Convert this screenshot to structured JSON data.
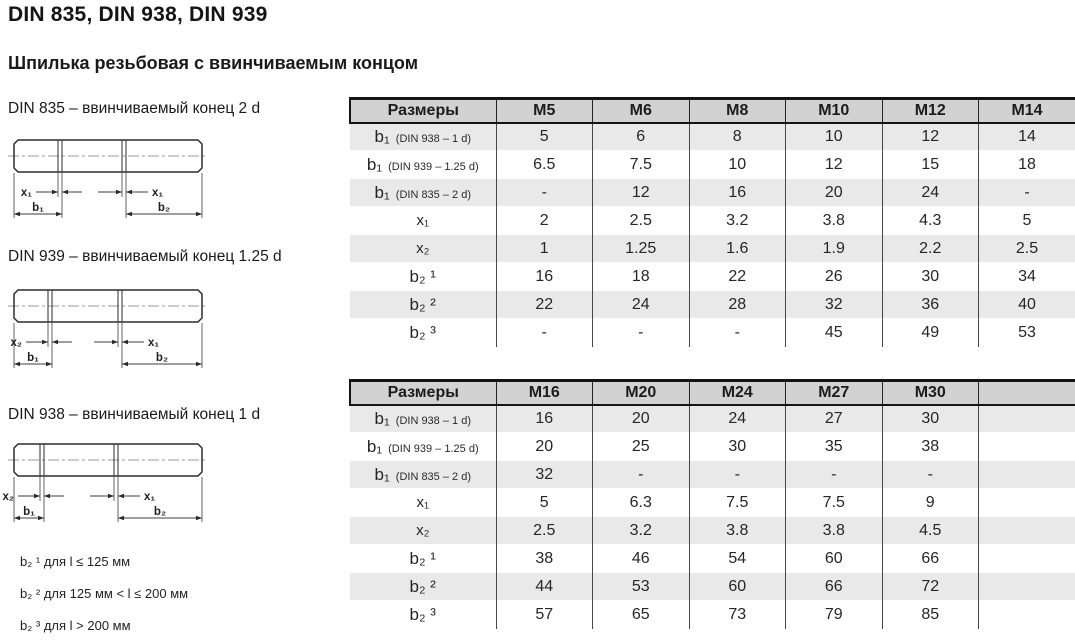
{
  "header": {
    "title": "DIN 835, DIN 938, DIN 939",
    "subtitle": "Шпилька резьбовая с ввинчиваемым концом"
  },
  "drawings": [
    {
      "heading": "DIN 835 – ввинчиваемый конец 2 d",
      "x_left_label": "x₁",
      "x_right_label": "x₁",
      "b_left_label": "b₁",
      "b_right_label": "b₂"
    },
    {
      "heading": "DIN 939 – ввинчиваемый конец 1.25 d",
      "x_left_label": "x₂",
      "x_right_label": "x₁",
      "b_left_label": "b₁",
      "b_right_label": "b₂"
    },
    {
      "heading": "DIN 938 – ввинчиваемый конец 1 d",
      "x_left_label": "x₂",
      "x_right_label": "x₁",
      "b_left_label": "b₁",
      "b_right_label": "b₂"
    }
  ],
  "footnotes": [
    "b₂ ¹ для l ≤ 125 мм",
    "b₂ ² для 125 мм < l ≤ 200 мм",
    "b₂ ³ для l > 200 мм"
  ],
  "tables": [
    {
      "columns": [
        "Размеры",
        "M5",
        "M6",
        "M8",
        "M10",
        "M12",
        "M14"
      ],
      "rows": [
        {
          "label": {
            "base": "b₁",
            "note": "(DIN 938 – 1 d)"
          },
          "values": [
            "5",
            "6",
            "8",
            "10",
            "12",
            "14"
          ]
        },
        {
          "label": {
            "base": "b₁",
            "note": "(DIN 939 – 1.25 d)"
          },
          "values": [
            "6.5",
            "7.5",
            "10",
            "12",
            "15",
            "18"
          ]
        },
        {
          "label": {
            "base": "b₁",
            "note": "(DIN 835 – 2 d)"
          },
          "values": [
            "-",
            "12",
            "16",
            "20",
            "24",
            "-"
          ]
        },
        {
          "label": {
            "base": "x₁"
          },
          "values": [
            "2",
            "2.5",
            "3.2",
            "3.8",
            "4.3",
            "5"
          ]
        },
        {
          "label": {
            "base": "x₂"
          },
          "values": [
            "1",
            "1.25",
            "1.6",
            "1.9",
            "2.2",
            "2.5"
          ]
        },
        {
          "label": {
            "base": "b₂ ¹"
          },
          "values": [
            "16",
            "18",
            "22",
            "26",
            "30",
            "34"
          ]
        },
        {
          "label": {
            "base": "b₂ ²"
          },
          "values": [
            "22",
            "24",
            "28",
            "32",
            "36",
            "40"
          ]
        },
        {
          "label": {
            "base": "b₂ ³"
          },
          "values": [
            "-",
            "-",
            "-",
            "45",
            "49",
            "53"
          ]
        }
      ]
    },
    {
      "columns": [
        "Размеры",
        "M16",
        "M20",
        "M24",
        "M27",
        "M30",
        ""
      ],
      "rows": [
        {
          "label": {
            "base": "b₁",
            "note": "(DIN 938 – 1 d)"
          },
          "values": [
            "16",
            "20",
            "24",
            "27",
            "30",
            ""
          ]
        },
        {
          "label": {
            "base": "b₁",
            "note": "(DIN 939 – 1.25 d)"
          },
          "values": [
            "20",
            "25",
            "30",
            "35",
            "38",
            ""
          ]
        },
        {
          "label": {
            "base": "b₁",
            "note": "(DIN 835 – 2 d)"
          },
          "values": [
            "32",
            "-",
            "-",
            "-",
            "-",
            ""
          ]
        },
        {
          "label": {
            "base": "x₁"
          },
          "values": [
            "5",
            "6.3",
            "7.5",
            "7.5",
            "9",
            ""
          ]
        },
        {
          "label": {
            "base": "x₂"
          },
          "values": [
            "2.5",
            "3.2",
            "3.8",
            "3.8",
            "4.5",
            ""
          ]
        },
        {
          "label": {
            "base": "b₂ ¹"
          },
          "values": [
            "38",
            "46",
            "54",
            "60",
            "66",
            ""
          ]
        },
        {
          "label": {
            "base": "b₂ ²"
          },
          "values": [
            "44",
            "53",
            "60",
            "66",
            "72",
            ""
          ]
        },
        {
          "label": {
            "base": "b₂ ³"
          },
          "values": [
            "57",
            "65",
            "73",
            "79",
            "85",
            ""
          ]
        }
      ]
    }
  ],
  "colors": {
    "table_header_bg": "#d2d2d2",
    "row_stripe_bg": "#e9e9e9",
    "border": "#151515",
    "text": "#262626"
  }
}
